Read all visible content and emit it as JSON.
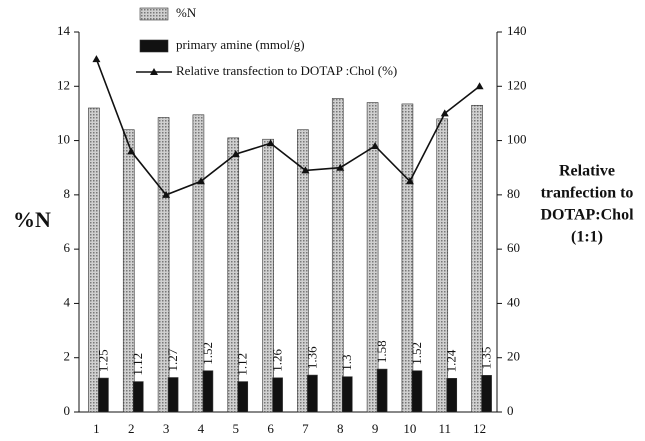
{
  "chart_data": {
    "type": "bar",
    "categories": [
      "1",
      "2",
      "3",
      "4",
      "5",
      "6",
      "7",
      "8",
      "9",
      "10",
      "11",
      "12"
    ],
    "series": [
      {
        "name": "%N",
        "color": "#b5b5b5",
        "values": [
          11.2,
          10.4,
          10.85,
          10.95,
          10.1,
          10.05,
          10.4,
          11.55,
          11.4,
          11.35,
          10.8,
          11.3
        ]
      },
      {
        "name": "primary amine (mmol/g)",
        "color": "#111111",
        "values": [
          1.25,
          1.12,
          1.27,
          1.52,
          1.12,
          1.26,
          1.36,
          1.3,
          1.58,
          1.52,
          1.24,
          1.35
        ],
        "data_labels": true
      },
      {
        "name": "Relative transfection to DOTAP :Chol (%)",
        "color": "#111111",
        "type": "line",
        "axis": "y2",
        "values": [
          130,
          96,
          80,
          85,
          95,
          99,
          89,
          90,
          98,
          85,
          110,
          120
        ]
      }
    ],
    "ylabel": "%N",
    "y2label": [
      "Relative",
      "tranfection to",
      "DOTAP:Chol",
      "(1:1)"
    ],
    "ylim": [
      0,
      14
    ],
    "yticks": [
      0,
      2,
      4,
      6,
      8,
      10,
      12,
      14
    ],
    "y2lim": [
      0,
      140
    ],
    "y2ticks": [
      0,
      20,
      40,
      60,
      80,
      100,
      120,
      140
    ],
    "legend": "top-left"
  }
}
